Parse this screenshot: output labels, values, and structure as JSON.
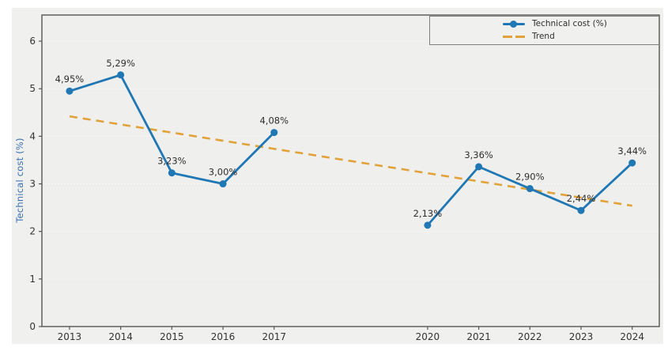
{
  "figure": {
    "background": "#f0f0ef",
    "plot_background": "#efefee",
    "page_background": "#ffffff"
  },
  "chart_data": {
    "type": "line",
    "title": "",
    "xlabel": "",
    "ylabel": "Technical cost (%)",
    "x": [
      2013,
      2014,
      2015,
      2016,
      2017,
      2020,
      2021,
      2022,
      2023,
      2024
    ],
    "x_tick_labels": [
      "2013",
      "2014",
      "2015",
      "2016",
      "2017",
      "2020",
      "2021",
      "2022",
      "2023",
      "2024"
    ],
    "yticks": [
      0,
      1,
      2,
      3,
      4,
      5,
      6
    ],
    "ylim": [
      0,
      6.55
    ],
    "xlim": [
      2012.46,
      2024.53
    ],
    "grid": true,
    "legend_position": "upper-right",
    "series": [
      {
        "name": "Technical cost (%)",
        "color": "#1f77b4",
        "marker": "circle",
        "values": [
          4.95,
          5.29,
          3.23,
          3.0,
          4.08,
          2.13,
          3.36,
          2.9,
          2.44,
          3.44
        ],
        "point_labels": [
          "4,95%",
          "5,29%",
          "3,23%",
          "3,00%",
          "4,08%",
          "2,13%",
          "3,36%",
          "2,90%",
          "2,44%",
          "3,44%"
        ],
        "gap_between": [
          2017,
          2020
        ]
      }
    ],
    "trend": {
      "name": "Trend",
      "color": "#e2a23a",
      "style": "dashed",
      "x": [
        2013,
        2024
      ],
      "y": [
        4.42,
        2.54
      ]
    }
  },
  "colors": {
    "axis": "#555557",
    "tick_label": "#333333",
    "point_label": "#2e2e2e",
    "grid": "#fafaf9",
    "ylabel": "#3a70b2",
    "legend_border": "#7f7f7f",
    "legend_bg": "#f0f0ef",
    "legend_text": "#2e2e2e"
  }
}
